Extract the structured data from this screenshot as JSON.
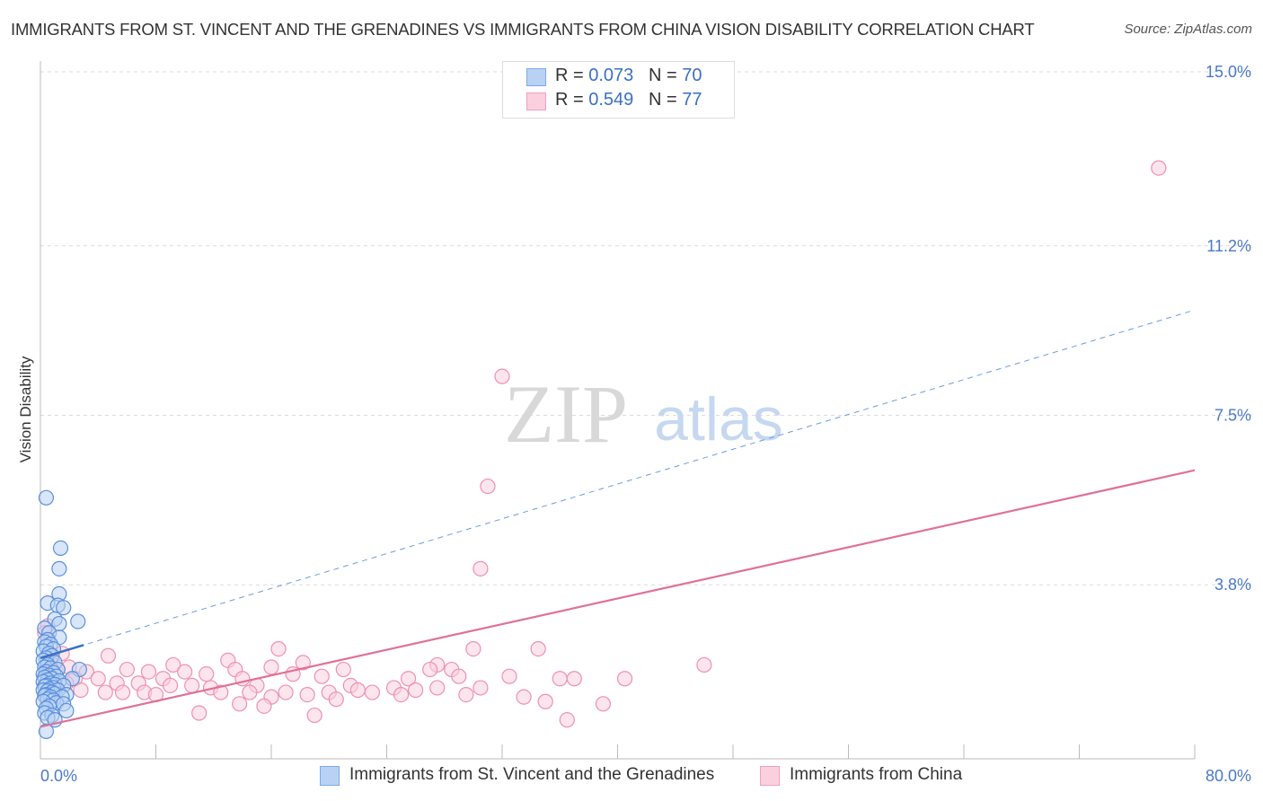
{
  "title": "IMMIGRANTS FROM ST. VINCENT AND THE GRENADINES VS IMMIGRANTS FROM CHINA VISION DISABILITY CORRELATION CHART",
  "source": "Source: ZipAtlas.com",
  "watermark": {
    "zip": "ZIP",
    "atlas": "atlas"
  },
  "legend": {
    "rows": [
      {
        "r_label": "R = ",
        "r_value": "0.073",
        "n_label": "N = ",
        "n_value": "70",
        "color": "#7aaae8",
        "fill": "#b9d2f4"
      },
      {
        "r_label": "R = ",
        "r_value": "0.549",
        "n_label": "N = ",
        "n_value": "77",
        "color": "#f0a0bc",
        "fill": "#fbd0de"
      }
    ]
  },
  "bottom_legend": [
    {
      "label": "Immigrants from St. Vincent and the Grenadines",
      "color": "#7aaae8",
      "fill": "#b9d2f4"
    },
    {
      "label": "Immigrants from China",
      "color": "#f0a0bc",
      "fill": "#fbd0de"
    }
  ],
  "chart_data": {
    "type": "scatter",
    "title": "IMMIGRANTS FROM ST. VINCENT AND THE GRENADINES VS IMMIGRANTS FROM CHINA VISION DISABILITY CORRELATION CHART",
    "xlabel": "",
    "ylabel": "Vision Disability",
    "xlim": [
      0,
      80
    ],
    "ylim": [
      0,
      15
    ],
    "x_tick_labels": [
      "0.0%",
      "80.0%"
    ],
    "y_ticks": [
      3.8,
      7.5,
      11.2,
      15.0
    ],
    "y_tick_labels": [
      "3.8%",
      "7.5%",
      "11.2%",
      "15.0%"
    ],
    "grid": true,
    "legend_position": "top-center",
    "series": [
      {
        "name": "Immigrants from St. Vincent and the Grenadines",
        "color": "#4a86d8",
        "trend": {
          "style": "dashed",
          "x": [
            0,
            80
          ],
          "y": [
            2.2,
            9.8
          ],
          "solid_until_x": 3
        },
        "points": [
          [
            0.4,
            5.7
          ],
          [
            1.4,
            4.6
          ],
          [
            1.3,
            4.15
          ],
          [
            1.3,
            3.6
          ],
          [
            0.5,
            3.4
          ],
          [
            1.2,
            3.35
          ],
          [
            1.6,
            3.3
          ],
          [
            1.0,
            3.05
          ],
          [
            2.6,
            3.0
          ],
          [
            1.3,
            2.95
          ],
          [
            0.3,
            2.85
          ],
          [
            0.6,
            2.75
          ],
          [
            1.3,
            2.65
          ],
          [
            0.5,
            2.6
          ],
          [
            0.3,
            2.55
          ],
          [
            0.7,
            2.5
          ],
          [
            0.4,
            2.45
          ],
          [
            0.9,
            2.4
          ],
          [
            0.2,
            2.35
          ],
          [
            0.6,
            2.3
          ],
          [
            0.8,
            2.25
          ],
          [
            0.4,
            2.2
          ],
          [
            0.2,
            2.15
          ],
          [
            1.0,
            2.1
          ],
          [
            0.5,
            2.05
          ],
          [
            0.3,
            2.0
          ],
          [
            0.7,
            1.98
          ],
          [
            1.2,
            1.95
          ],
          [
            2.7,
            1.95
          ],
          [
            0.4,
            1.9
          ],
          [
            0.9,
            1.88
          ],
          [
            0.2,
            1.85
          ],
          [
            0.6,
            1.82
          ],
          [
            1.1,
            1.8
          ],
          [
            0.3,
            1.78
          ],
          [
            0.8,
            1.75
          ],
          [
            2.2,
            1.75
          ],
          [
            0.5,
            1.72
          ],
          [
            1.3,
            1.7
          ],
          [
            0.2,
            1.68
          ],
          [
            0.7,
            1.65
          ],
          [
            1.0,
            1.62
          ],
          [
            0.4,
            1.6
          ],
          [
            1.6,
            1.6
          ],
          [
            0.3,
            1.58
          ],
          [
            0.9,
            1.55
          ],
          [
            0.6,
            1.52
          ],
          [
            1.2,
            1.5
          ],
          [
            0.2,
            1.5
          ],
          [
            0.5,
            1.48
          ],
          [
            0.8,
            1.45
          ],
          [
            1.0,
            1.42
          ],
          [
            0.4,
            1.4
          ],
          [
            1.8,
            1.4
          ],
          [
            0.3,
            1.38
          ],
          [
            0.7,
            1.35
          ],
          [
            1.5,
            1.35
          ],
          [
            0.5,
            1.3
          ],
          [
            0.9,
            1.28
          ],
          [
            0.2,
            1.25
          ],
          [
            1.1,
            1.22
          ],
          [
            1.6,
            1.2
          ],
          [
            0.6,
            1.15
          ],
          [
            0.4,
            1.1
          ],
          [
            1.8,
            1.05
          ],
          [
            0.3,
            1.0
          ],
          [
            0.8,
            0.95
          ],
          [
            0.5,
            0.9
          ],
          [
            1.0,
            0.85
          ],
          [
            0.4,
            0.6
          ]
        ]
      },
      {
        "name": "Immigrants from China",
        "color": "#e0709a",
        "trend": {
          "style": "solid",
          "x": [
            0,
            80
          ],
          "y": [
            0.7,
            6.3
          ]
        },
        "points": [
          [
            77.5,
            12.9
          ],
          [
            32.0,
            8.35
          ],
          [
            31.0,
            5.95
          ],
          [
            30.5,
            4.15
          ],
          [
            0.5,
            2.9
          ],
          [
            0.3,
            2.75
          ],
          [
            16.5,
            2.4
          ],
          [
            34.5,
            2.4
          ],
          [
            30.0,
            2.4
          ],
          [
            1.5,
            2.3
          ],
          [
            4.7,
            2.25
          ],
          [
            13.0,
            2.15
          ],
          [
            18.2,
            2.1
          ],
          [
            27.5,
            2.05
          ],
          [
            0.8,
            2.05
          ],
          [
            9.2,
            2.05
          ],
          [
            46.0,
            2.05
          ],
          [
            2.0,
            2.0
          ],
          [
            6.0,
            1.95
          ],
          [
            16.0,
            2.0
          ],
          [
            13.5,
            1.95
          ],
          [
            21.0,
            1.95
          ],
          [
            27.0,
            1.95
          ],
          [
            28.5,
            1.95
          ],
          [
            1.2,
            1.95
          ],
          [
            3.2,
            1.9
          ],
          [
            7.5,
            1.9
          ],
          [
            10.0,
            1.9
          ],
          [
            11.5,
            1.85
          ],
          [
            17.5,
            1.85
          ],
          [
            29.0,
            1.8
          ],
          [
            19.5,
            1.8
          ],
          [
            2.4,
            1.75
          ],
          [
            4.0,
            1.75
          ],
          [
            8.5,
            1.75
          ],
          [
            14.0,
            1.75
          ],
          [
            25.5,
            1.75
          ],
          [
            32.5,
            1.8
          ],
          [
            36.0,
            1.75
          ],
          [
            40.5,
            1.75
          ],
          [
            37.0,
            1.75
          ],
          [
            1.8,
            1.65
          ],
          [
            5.3,
            1.65
          ],
          [
            6.8,
            1.65
          ],
          [
            9.0,
            1.6
          ],
          [
            10.5,
            1.6
          ],
          [
            11.8,
            1.55
          ],
          [
            15.0,
            1.6
          ],
          [
            21.5,
            1.6
          ],
          [
            27.5,
            1.55
          ],
          [
            30.5,
            1.55
          ],
          [
            22.0,
            1.5
          ],
          [
            24.5,
            1.55
          ],
          [
            26.0,
            1.5
          ],
          [
            2.8,
            1.5
          ],
          [
            4.5,
            1.45
          ],
          [
            5.7,
            1.45
          ],
          [
            7.2,
            1.45
          ],
          [
            8.0,
            1.4
          ],
          [
            12.5,
            1.45
          ],
          [
            14.5,
            1.45
          ],
          [
            17.0,
            1.45
          ],
          [
            18.5,
            1.4
          ],
          [
            20.0,
            1.45
          ],
          [
            23.0,
            1.45
          ],
          [
            25.0,
            1.4
          ],
          [
            29.5,
            1.4
          ],
          [
            33.5,
            1.35
          ],
          [
            16.0,
            1.35
          ],
          [
            13.8,
            1.2
          ],
          [
            15.5,
            1.15
          ],
          [
            20.5,
            1.3
          ],
          [
            35.0,
            1.25
          ],
          [
            39.0,
            1.2
          ],
          [
            11.0,
            1.0
          ],
          [
            19.0,
            0.95
          ],
          [
            36.5,
            0.85
          ]
        ]
      }
    ]
  }
}
